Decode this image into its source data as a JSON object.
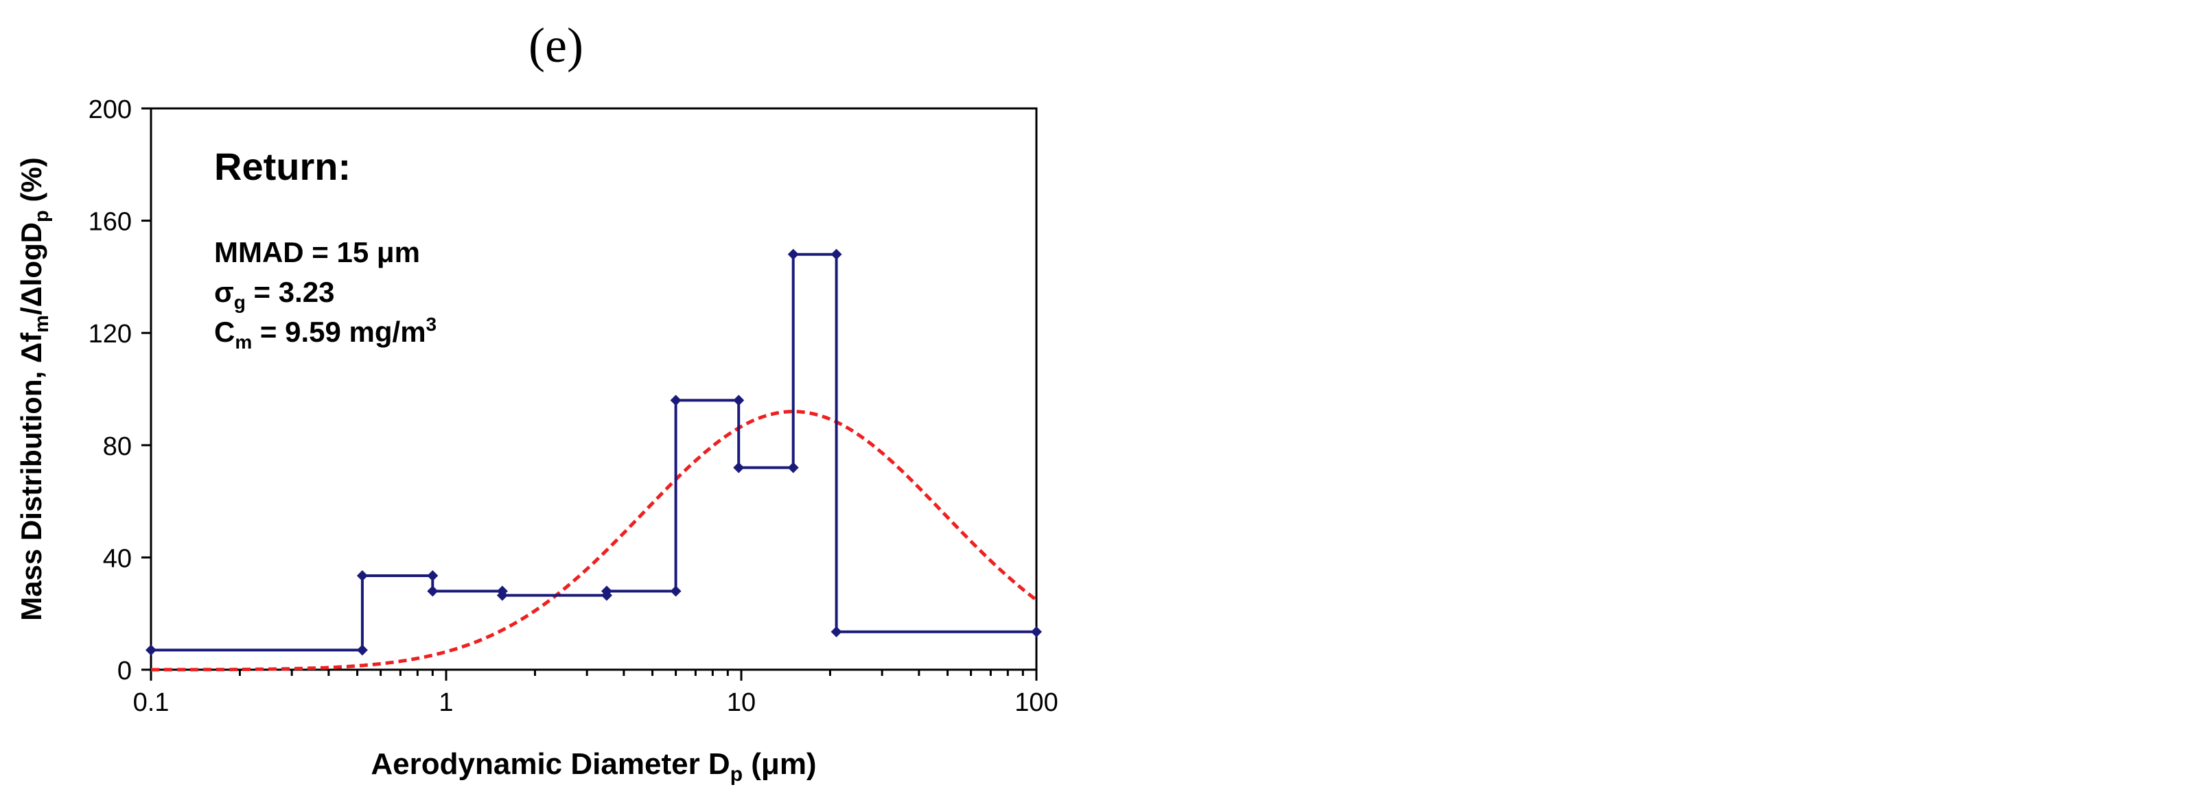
{
  "panel_label": "(e)",
  "chart_data": {
    "type": "line",
    "xlabel": "Aerodynamic Diameter D",
    "xlabel_sub": "p",
    "xlabel_unit": " (μm)",
    "ylabel": "Mass Distribution, Δf",
    "ylabel_sub1": "m",
    "ylabel_mid": "/ΔlogD",
    "ylabel_sub2": "p",
    "ylabel_unit": " (%)",
    "x_scale": "log",
    "xlim": [
      0.1,
      100
    ],
    "ylim": [
      0,
      200
    ],
    "x_ticks": [
      0.1,
      1,
      10,
      100
    ],
    "x_tick_labels": [
      "0.1",
      "1",
      "10",
      "100"
    ],
    "y_ticks": [
      0,
      40,
      80,
      120,
      160,
      200
    ],
    "y_tick_labels": [
      "0",
      "40",
      "80",
      "120",
      "160",
      "200"
    ],
    "grid": false,
    "annotations": {
      "heading": "Return:",
      "line1": "MMAD = 15 μm",
      "line2_prefix": "σ",
      "line2_sub": "g",
      "line2_rest": " = 3.23",
      "line3_prefix": "C",
      "line3_sub": "m",
      "line3_rest": " = 9.59 mg/m",
      "line3_sup": "3"
    },
    "series": [
      {
        "type": "step",
        "color": "#1a1a7a",
        "marker": "diamond",
        "points": [
          [
            0.1,
            7
          ],
          [
            0.52,
            7
          ],
          [
            0.52,
            33.5
          ],
          [
            0.9,
            33.5
          ],
          [
            0.9,
            28
          ],
          [
            1.55,
            28
          ],
          [
            1.55,
            26.5
          ],
          [
            3.5,
            26.5
          ],
          [
            3.5,
            28
          ],
          [
            6.0,
            28
          ],
          [
            6.0,
            96
          ],
          [
            9.8,
            96
          ],
          [
            9.8,
            72
          ],
          [
            15.0,
            72
          ],
          [
            15.0,
            148
          ],
          [
            21.0,
            148
          ],
          [
            21.0,
            13.5
          ],
          [
            100,
            13.5
          ]
        ]
      },
      {
        "type": "lognormal-fit",
        "color": "#ee2020",
        "style": "dashed",
        "mmad": 15,
        "sigma_g": 3.23,
        "peak_value": 92
      }
    ]
  }
}
